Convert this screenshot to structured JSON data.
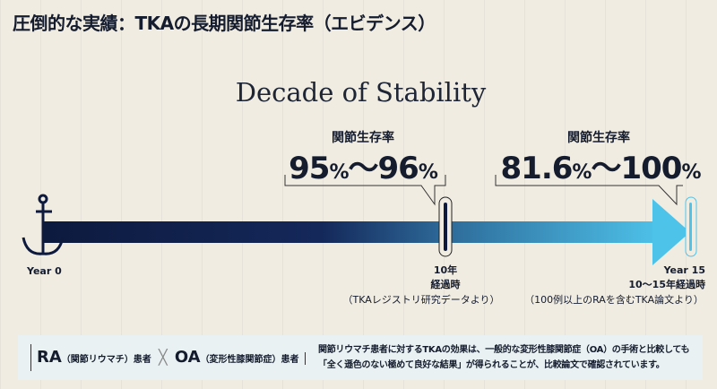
{
  "title": "圧倒的な実績：TKAの長期関節生存率（エビデンス）",
  "subtitle": "Decade of Stability",
  "milestones": [
    {
      "label": "関節生存率",
      "value_a": "95",
      "value_b": "96",
      "unit": "%",
      "sep": "〜",
      "time": "10年",
      "time2": "経過時",
      "source": "（TKAレジストリ研究データより）"
    },
    {
      "label": "関節生存率",
      "value_a": "81.6",
      "value_b": "100",
      "unit": "%",
      "sep": "〜",
      "year": "Year 15",
      "time": "10〜15年経過時",
      "source": "（100例以上のRAを含むTKA論文より）"
    }
  ],
  "start": "Year 0",
  "colors": {
    "bar_start": "#0d1a3e",
    "bar_end": "#4ec3ea"
  },
  "panel": {
    "ra": "RA",
    "ra_note": "（関節リウマチ）患者",
    "oa": "OA",
    "oa_note": "（変形性膝関節症）患者",
    "cross": "╳",
    "text1": "関節リウマチ患者に対するTKAの効果は、一般的な変形性膝関節症（OA）の手術と比較しても",
    "text2": "「全く遜色のない極めて良好な結果」が得られることが、比較論文で確認されています。"
  }
}
